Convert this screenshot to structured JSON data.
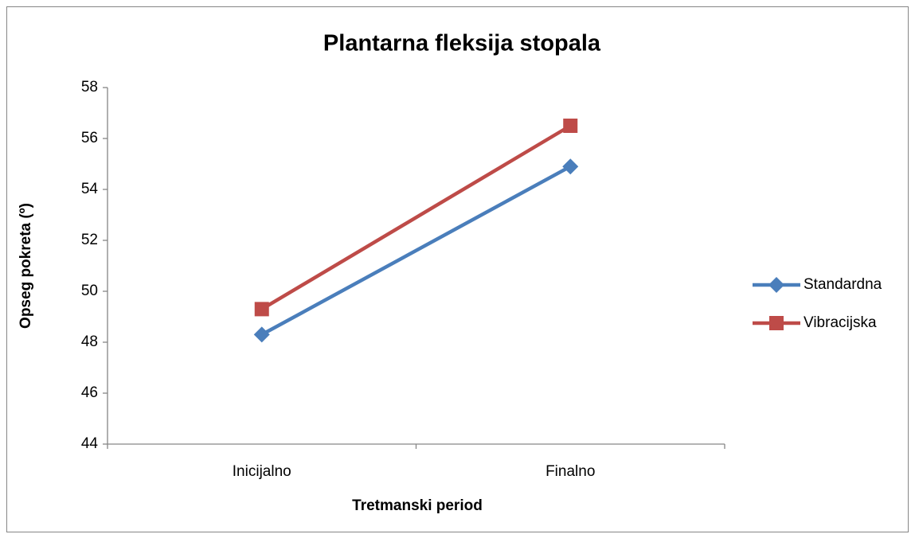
{
  "chart_data": {
    "type": "line",
    "title": "Plantarna fleksija stopala",
    "x_label": "Tretmanski period",
    "y_label": "Opseg pokreta (º)",
    "categories": [
      "Inicijalno",
      "Finalno"
    ],
    "series": [
      {
        "name": "Standardna",
        "color": "#4a7ebb",
        "marker": "diamond",
        "values": [
          48.3,
          54.9
        ]
      },
      {
        "name": "Vibracijska",
        "color": "#be4b48",
        "marker": "square",
        "values": [
          49.3,
          56.5
        ]
      }
    ],
    "ylim": [
      44,
      58
    ],
    "yticks": [
      44,
      46,
      48,
      50,
      52,
      54,
      56,
      58
    ],
    "grid": false,
    "legend": "right"
  }
}
